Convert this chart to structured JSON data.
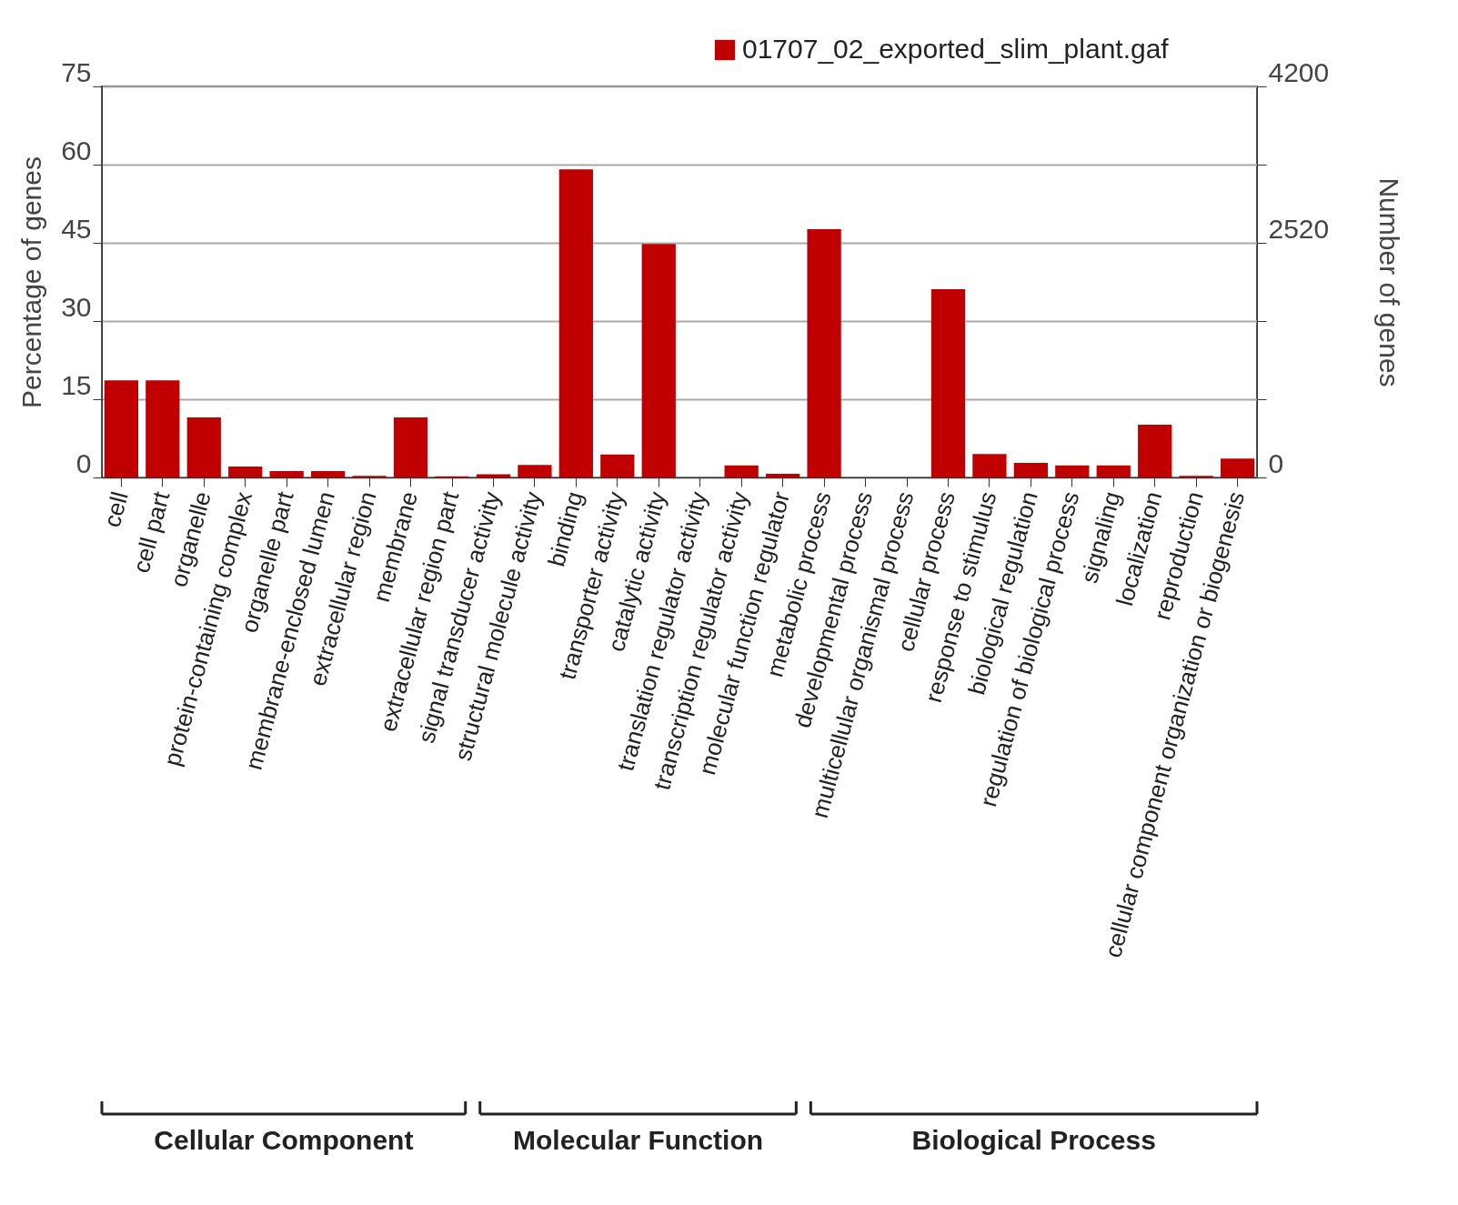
{
  "chart_data": {
    "type": "bar",
    "ylabel": "Percentage of genes",
    "y2label": "Number of genes",
    "categories": [
      "cell",
      "cell part",
      "organelle",
      "protein-containing complex",
      "organelle part",
      "membrane-enclosed lumen",
      "extracellular region",
      "membrane",
      "extracellular region part",
      "signal transducer activity",
      "structural molecule activity",
      "binding",
      "transporter activity",
      "catalytic activity",
      "translation regulator activity",
      "transcription regulator activity",
      "molecular function regulator",
      "metabolic process",
      "developmental process",
      "multicellular organismal process",
      "cellular process",
      "response to stimulus",
      "biological regulation",
      "regulation of biological process",
      "signaling",
      "localization",
      "reproduction",
      "cellular component organization or biogenesis"
    ],
    "series": [
      {
        "name": "01707_02_exported_slim_plant.gaf",
        "color": "#c00000",
        "values": [
          18.6,
          18.6,
          11.5,
          2.1,
          1.2,
          1.2,
          0.3,
          11.5,
          0.2,
          0.6,
          2.4,
          59.1,
          4.4,
          44.8,
          0,
          2.3,
          0.7,
          47.6,
          0,
          0,
          36.1,
          4.5,
          2.8,
          2.3,
          2.3,
          10.1,
          0.3,
          3.6
        ]
      }
    ],
    "ylim": [
      0,
      75
    ],
    "yticks": [
      0,
      15,
      30,
      45,
      60,
      75
    ],
    "y2lim": [
      0,
      4200
    ],
    "y2ticks": [
      0,
      {
        "value": 840,
        "label": null
      },
      {
        "value": 1680,
        "label": null
      },
      2520,
      {
        "value": 3360,
        "label": null
      },
      4200
    ],
    "grid": "y",
    "legend": "top right",
    "annotations": [
      "Cellular Component",
      "Molecular Function",
      "Biological Process"
    ]
  }
}
